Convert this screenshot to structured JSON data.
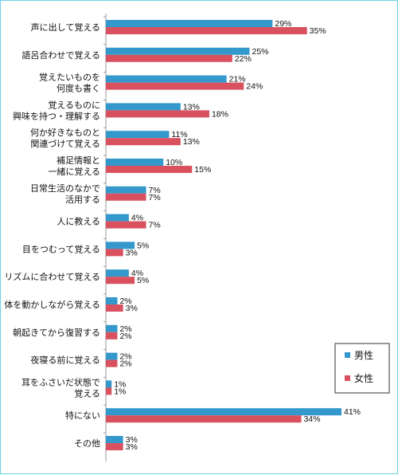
{
  "chart_data": {
    "type": "bar",
    "orientation": "horizontal",
    "categories": [
      [
        "声に出して覚える"
      ],
      [
        "語呂合わせで覚える"
      ],
      [
        "覚えたいものを",
        "何度も書く"
      ],
      [
        "覚えるものに",
        "興味を持つ・理解する"
      ],
      [
        "何か好きなものと",
        "関連づけて覚える"
      ],
      [
        "補足情報と",
        "一緒に覚える"
      ],
      [
        "日常生活のなかで",
        "活用する"
      ],
      [
        "人に教える"
      ],
      [
        "目をつむって覚える"
      ],
      [
        "リズムに合わせて覚える"
      ],
      [
        "体を動かしながら覚える"
      ],
      [
        "朝起きてから復習する"
      ],
      [
        "夜寝る前に覚える"
      ],
      [
        "耳をふさいだ状態で",
        "覚える"
      ],
      [
        "特にない"
      ],
      [
        "その他"
      ]
    ],
    "series": [
      {
        "name": "男性",
        "color": "#3399cc",
        "values": [
          29,
          25,
          21,
          13,
          11,
          10,
          7,
          4,
          5,
          4,
          2,
          2,
          2,
          1,
          41,
          3
        ]
      },
      {
        "name": "女性",
        "color": "#d9505e",
        "values": [
          35,
          22,
          24,
          18,
          13,
          15,
          7,
          7,
          3,
          5,
          3,
          2,
          2,
          1,
          34,
          3
        ]
      }
    ],
    "value_suffix": "%",
    "xlim": [
      0,
      45
    ],
    "grid": false,
    "legend_position": "bottom-right"
  }
}
